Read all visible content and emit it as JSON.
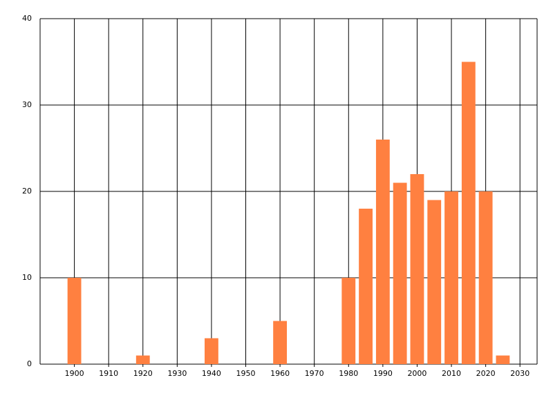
{
  "chart_data": {
    "type": "bar",
    "x": [
      1900,
      1920,
      1940,
      1960,
      1980,
      1985,
      1990,
      1995,
      2000,
      2005,
      2010,
      2015,
      2020,
      2025
    ],
    "values": [
      10,
      1,
      3,
      5,
      10,
      18,
      26,
      21,
      22,
      19,
      20,
      35,
      20,
      1
    ],
    "color": "#ff8040",
    "bar_width": 4,
    "xlim": [
      1890,
      2035
    ],
    "xticks": [
      1900,
      1910,
      1920,
      1930,
      1940,
      1950,
      1960,
      1970,
      1980,
      1990,
      2000,
      2010,
      2020,
      2030
    ],
    "ylim": [
      0,
      40
    ],
    "yticks": [
      0,
      10,
      20,
      30,
      40
    ],
    "grid": true
  }
}
